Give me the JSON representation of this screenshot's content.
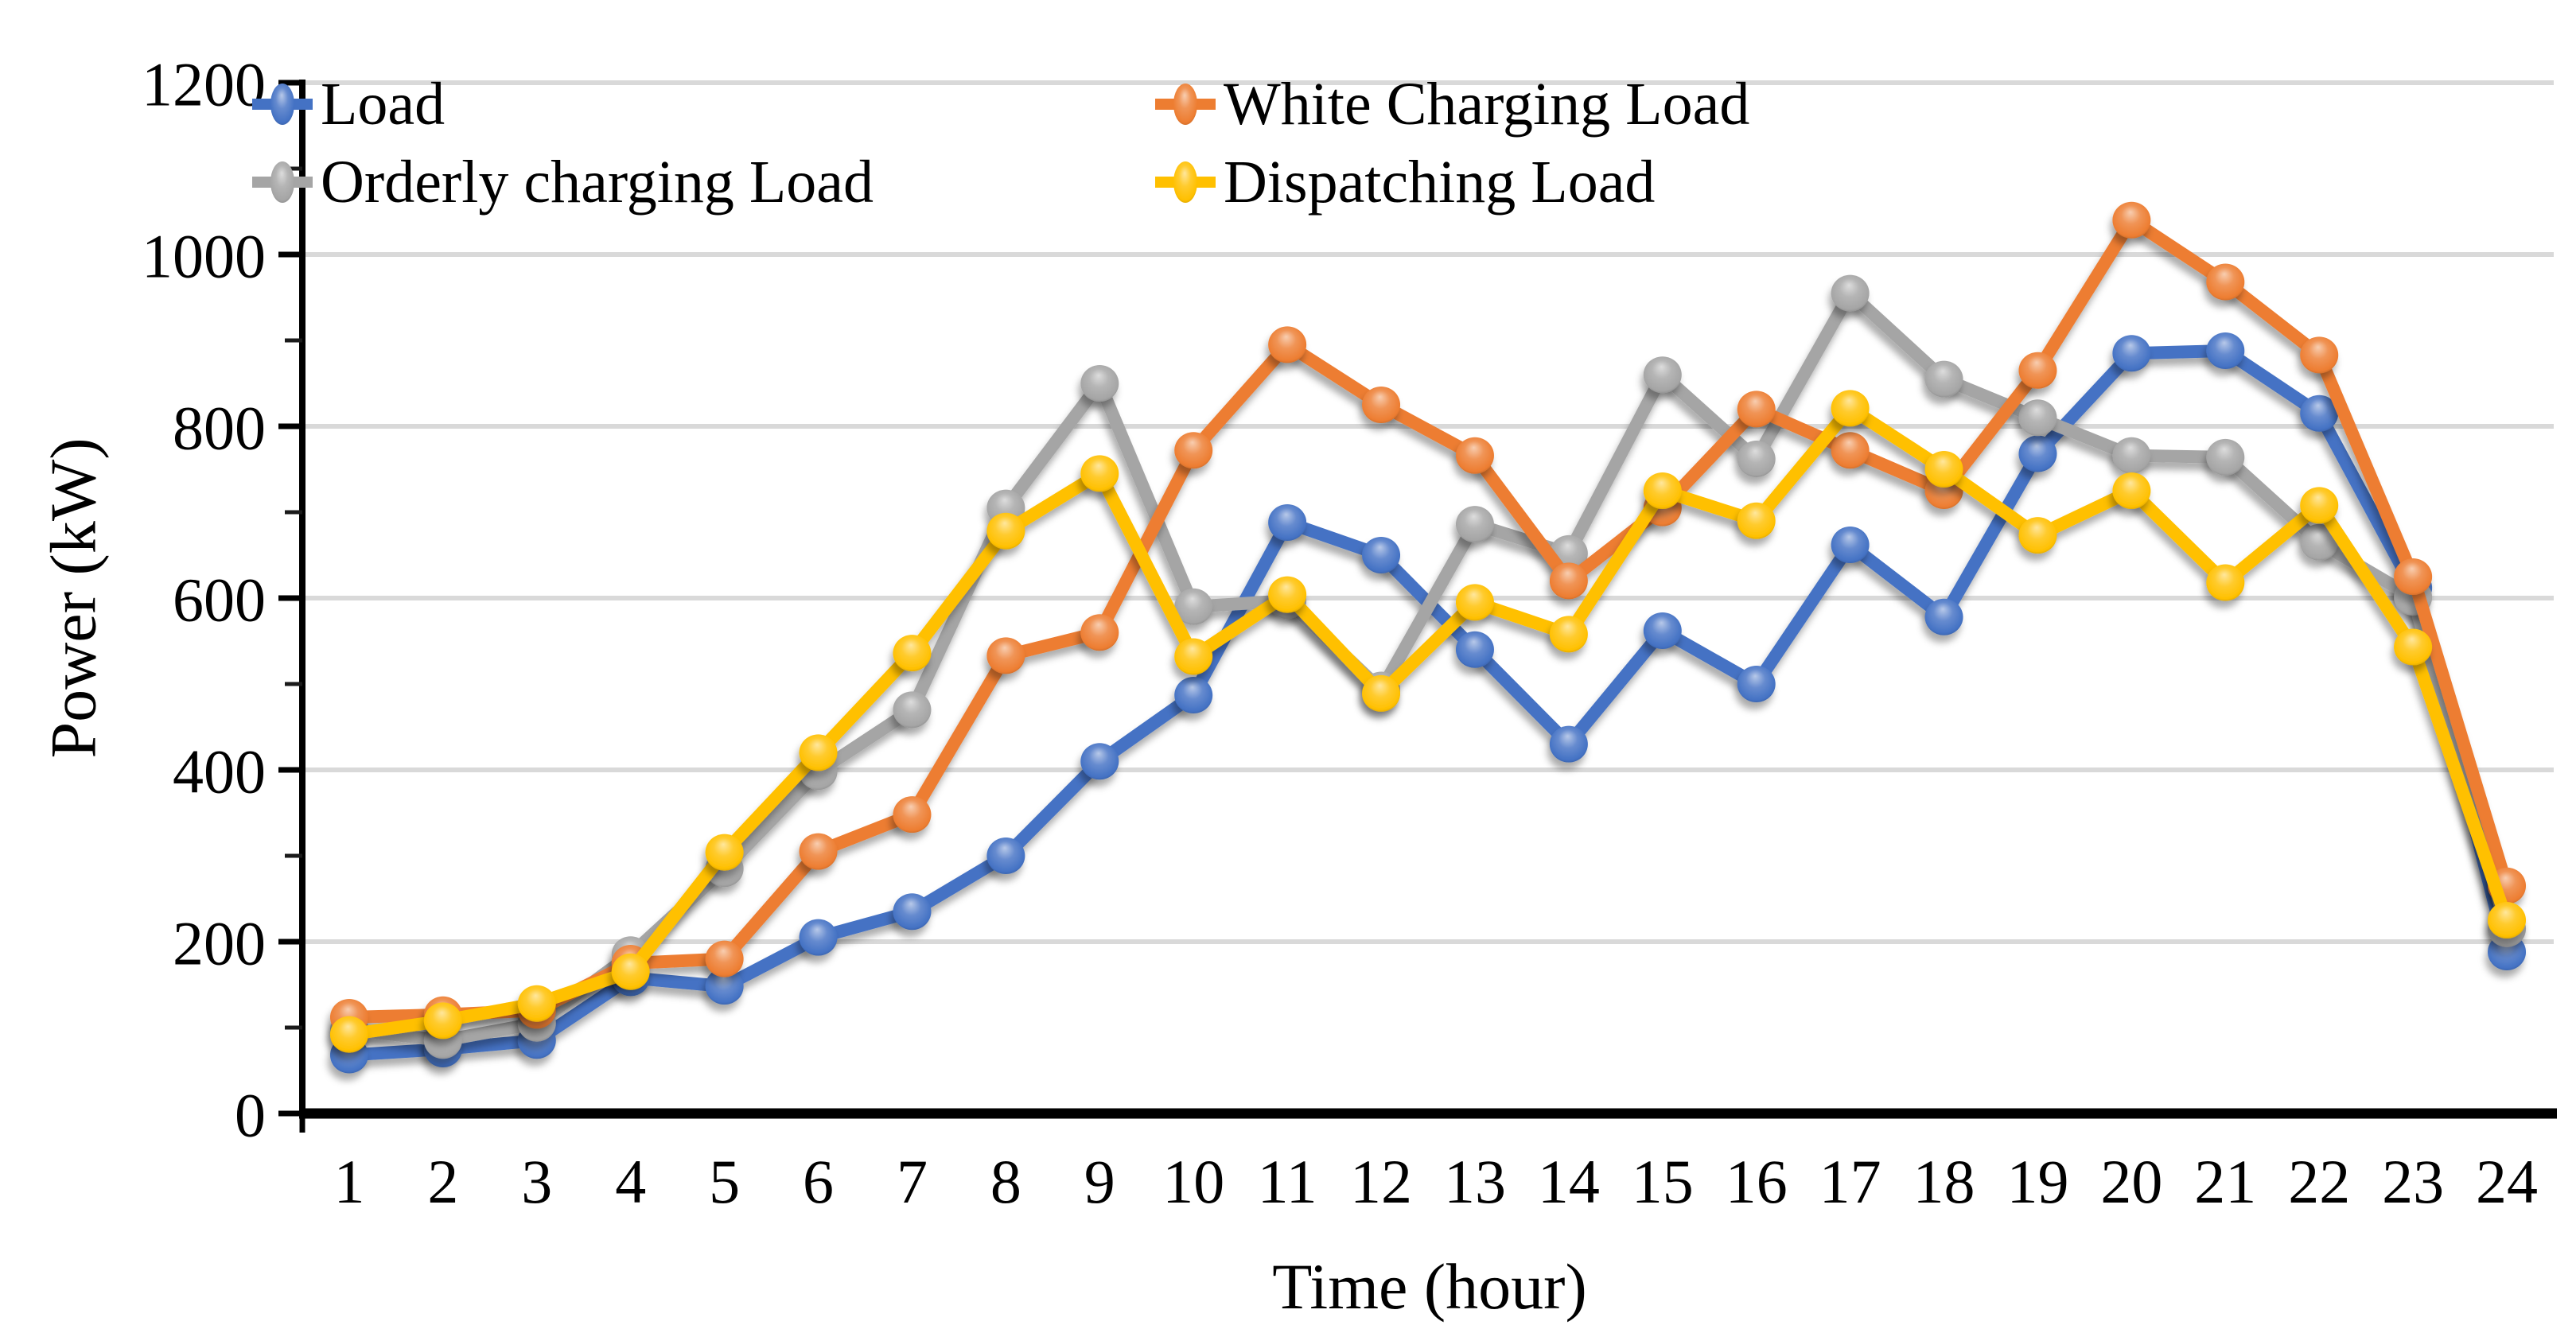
{
  "chart_data": {
    "type": "line",
    "title": "",
    "xlabel": "Time (hour)",
    "ylabel": "Power (kW)",
    "x": [
      1,
      2,
      3,
      4,
      5,
      6,
      7,
      8,
      9,
      10,
      11,
      12,
      13,
      14,
      15,
      16,
      17,
      18,
      19,
      20,
      21,
      22,
      23,
      24
    ],
    "xticks": [
      "1",
      "2",
      "3",
      "4",
      "5",
      "6",
      "7",
      "8",
      "9",
      "10",
      "11",
      "12",
      "13",
      "14",
      "15",
      "16",
      "17",
      "18",
      "19",
      "20",
      "21",
      "22",
      "23",
      "24"
    ],
    "yticks": [
      0,
      200,
      400,
      600,
      800,
      1000,
      1200
    ],
    "ylim": [
      0,
      1200
    ],
    "grid": true,
    "legend_position": "top-inside-two-column",
    "background": "#FFFFFF",
    "gridline_color": "#D9D9D9",
    "axis_color": "#000000",
    "series": [
      {
        "name": "Load",
        "color": "#4472C4",
        "values": [
          68,
          75,
          85,
          158,
          148,
          205,
          235,
          300,
          410,
          487,
          688,
          650,
          540,
          430,
          562,
          500,
          662,
          578,
          768,
          885,
          888,
          815,
          612,
          188
        ]
      },
      {
        "name": "White Charging Load",
        "color": "#ED7D31",
        "values": [
          112,
          115,
          120,
          175,
          180,
          305,
          348,
          533,
          560,
          772,
          895,
          825,
          766,
          620,
          705,
          820,
          772,
          725,
          865,
          1040,
          968,
          883,
          625,
          265
        ]
      },
      {
        "name": "Orderly charging Load",
        "color": "#A5A5A5",
        "values": [
          98,
          85,
          105,
          185,
          285,
          398,
          470,
          705,
          850,
          590,
          597,
          493,
          686,
          652,
          860,
          762,
          955,
          855,
          810,
          766,
          764,
          665,
          601,
          215
        ]
      },
      {
        "name": "Dispatching Load",
        "color": "#FFC000",
        "values": [
          92,
          108,
          128,
          165,
          304,
          420,
          536,
          678,
          745,
          532,
          604,
          489,
          595,
          558,
          725,
          690,
          821,
          750,
          673,
          725,
          618,
          708,
          543,
          225
        ]
      }
    ]
  }
}
